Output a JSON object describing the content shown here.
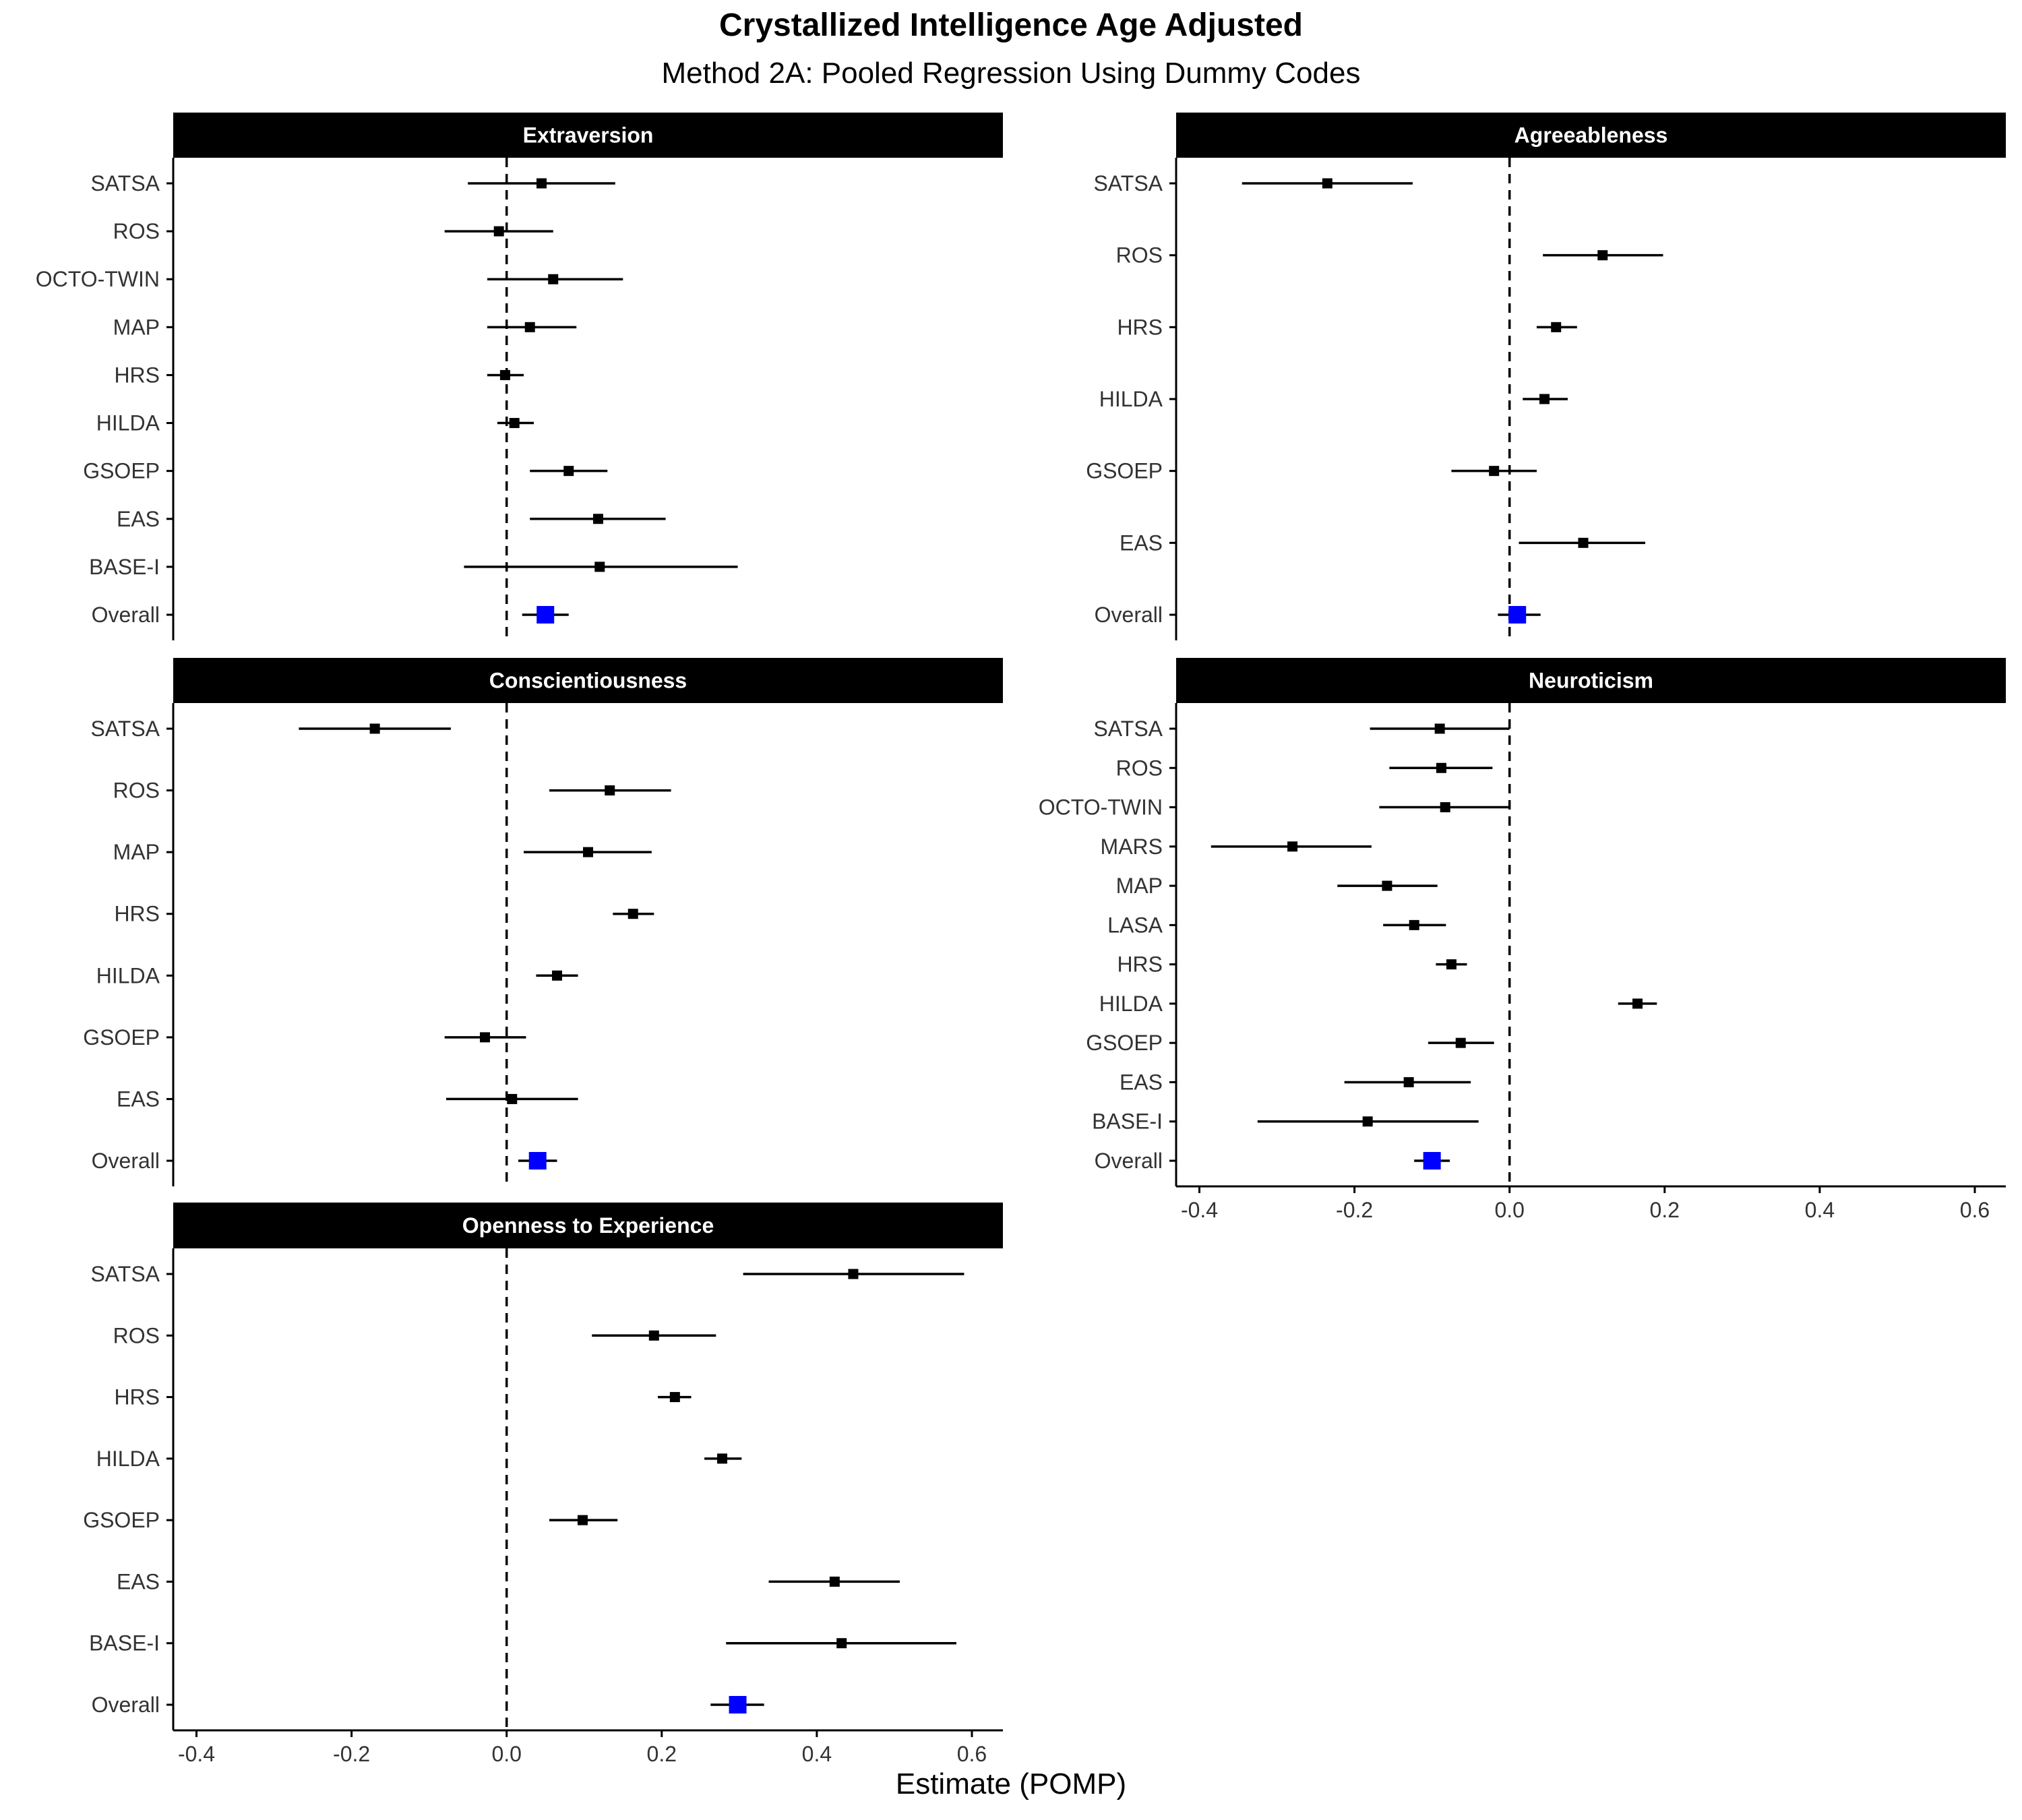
{
  "header": {
    "title": "Crystallized Intelligence Age Adjusted",
    "subtitle": "Method 2A: Pooled Regression Using Dummy Codes"
  },
  "colors": {
    "overall": "#0000ff",
    "point": "#000000",
    "strip": "#000000"
  },
  "chart_data": {
    "type": "forest",
    "xlabel": "Estimate (POMP)",
    "xlim": [
      -0.43,
      0.64
    ],
    "xticks": [
      -0.4,
      -0.2,
      0.0,
      0.2,
      0.4,
      0.6
    ],
    "xtick_labels": [
      "-0.4",
      "-0.2",
      "0.0",
      "0.2",
      "0.4",
      "0.6"
    ],
    "reference_line": 0,
    "panels": [
      {
        "name": "Extraversion",
        "show_x_axis": false,
        "rows": [
          {
            "label": "SATSA",
            "estimate": 0.045,
            "lower": -0.05,
            "upper": 0.14
          },
          {
            "label": "ROS",
            "estimate": -0.01,
            "lower": -0.08,
            "upper": 0.06
          },
          {
            "label": "OCTO-TWIN",
            "estimate": 0.06,
            "lower": -0.025,
            "upper": 0.15
          },
          {
            "label": "MAP",
            "estimate": 0.03,
            "lower": -0.025,
            "upper": 0.09
          },
          {
            "label": "HRS",
            "estimate": -0.002,
            "lower": -0.025,
            "upper": 0.022
          },
          {
            "label": "HILDA",
            "estimate": 0.01,
            "lower": -0.012,
            "upper": 0.035
          },
          {
            "label": "GSOEP",
            "estimate": 0.08,
            "lower": 0.03,
            "upper": 0.13
          },
          {
            "label": "EAS",
            "estimate": 0.118,
            "lower": 0.03,
            "upper": 0.205
          },
          {
            "label": "BASE-I",
            "estimate": 0.12,
            "lower": -0.055,
            "upper": 0.298
          },
          {
            "label": "Overall",
            "estimate": 0.05,
            "lower": 0.02,
            "upper": 0.08,
            "overall": true
          }
        ]
      },
      {
        "name": "Agreeableness",
        "show_x_axis": false,
        "rows": [
          {
            "label": "SATSA",
            "estimate": -0.235,
            "lower": -0.345,
            "upper": -0.125
          },
          {
            "label": "ROS",
            "estimate": 0.12,
            "lower": 0.043,
            "upper": 0.198
          },
          {
            "label": "HRS",
            "estimate": 0.06,
            "lower": 0.035,
            "upper": 0.087
          },
          {
            "label": "HILDA",
            "estimate": 0.045,
            "lower": 0.017,
            "upper": 0.075
          },
          {
            "label": "GSOEP",
            "estimate": -0.02,
            "lower": -0.075,
            "upper": 0.035
          },
          {
            "label": "EAS",
            "estimate": 0.095,
            "lower": 0.012,
            "upper": 0.175
          },
          {
            "label": "Overall",
            "estimate": 0.01,
            "lower": -0.015,
            "upper": 0.04,
            "overall": true
          }
        ]
      },
      {
        "name": "Conscientiousness",
        "show_x_axis": false,
        "rows": [
          {
            "label": "SATSA",
            "estimate": -0.17,
            "lower": -0.268,
            "upper": -0.072
          },
          {
            "label": "ROS",
            "estimate": 0.133,
            "lower": 0.055,
            "upper": 0.212
          },
          {
            "label": "MAP",
            "estimate": 0.105,
            "lower": 0.022,
            "upper": 0.187
          },
          {
            "label": "HRS",
            "estimate": 0.163,
            "lower": 0.137,
            "upper": 0.19
          },
          {
            "label": "HILDA",
            "estimate": 0.065,
            "lower": 0.038,
            "upper": 0.092
          },
          {
            "label": "GSOEP",
            "estimate": -0.028,
            "lower": -0.08,
            "upper": 0.025
          },
          {
            "label": "EAS",
            "estimate": 0.007,
            "lower": -0.078,
            "upper": 0.092
          },
          {
            "label": "Overall",
            "estimate": 0.04,
            "lower": 0.015,
            "upper": 0.065,
            "overall": true
          }
        ]
      },
      {
        "name": "Neuroticism",
        "show_x_axis": true,
        "rows": [
          {
            "label": "SATSA",
            "estimate": -0.09,
            "lower": -0.18,
            "upper": 0.0
          },
          {
            "label": "ROS",
            "estimate": -0.088,
            "lower": -0.155,
            "upper": -0.022
          },
          {
            "label": "OCTO-TWIN",
            "estimate": -0.083,
            "lower": -0.168,
            "upper": 0.0
          },
          {
            "label": "MARS",
            "estimate": -0.28,
            "lower": -0.385,
            "upper": -0.178
          },
          {
            "label": "MAP",
            "estimate": -0.158,
            "lower": -0.222,
            "upper": -0.093
          },
          {
            "label": "LASA",
            "estimate": -0.123,
            "lower": -0.163,
            "upper": -0.082
          },
          {
            "label": "HRS",
            "estimate": -0.075,
            "lower": -0.095,
            "upper": -0.055
          },
          {
            "label": "HILDA",
            "estimate": 0.165,
            "lower": 0.14,
            "upper": 0.19
          },
          {
            "label": "GSOEP",
            "estimate": -0.063,
            "lower": -0.105,
            "upper": -0.02
          },
          {
            "label": "EAS",
            "estimate": -0.13,
            "lower": -0.213,
            "upper": -0.05
          },
          {
            "label": "BASE-I",
            "estimate": -0.183,
            "lower": -0.325,
            "upper": -0.04
          },
          {
            "label": "Overall",
            "estimate": -0.1,
            "lower": -0.123,
            "upper": -0.077,
            "overall": true
          }
        ]
      },
      {
        "name": "Openness to Experience",
        "show_x_axis": true,
        "rows": [
          {
            "label": "SATSA",
            "estimate": 0.447,
            "lower": 0.305,
            "upper": 0.59
          },
          {
            "label": "ROS",
            "estimate": 0.19,
            "lower": 0.11,
            "upper": 0.27
          },
          {
            "label": "HRS",
            "estimate": 0.217,
            "lower": 0.195,
            "upper": 0.238
          },
          {
            "label": "HILDA",
            "estimate": 0.278,
            "lower": 0.255,
            "upper": 0.303
          },
          {
            "label": "GSOEP",
            "estimate": 0.098,
            "lower": 0.055,
            "upper": 0.143
          },
          {
            "label": "EAS",
            "estimate": 0.423,
            "lower": 0.338,
            "upper": 0.507
          },
          {
            "label": "BASE-I",
            "estimate": 0.432,
            "lower": 0.283,
            "upper": 0.58
          },
          {
            "label": "Overall",
            "estimate": 0.298,
            "lower": 0.263,
            "upper": 0.332,
            "overall": true
          }
        ]
      }
    ]
  }
}
